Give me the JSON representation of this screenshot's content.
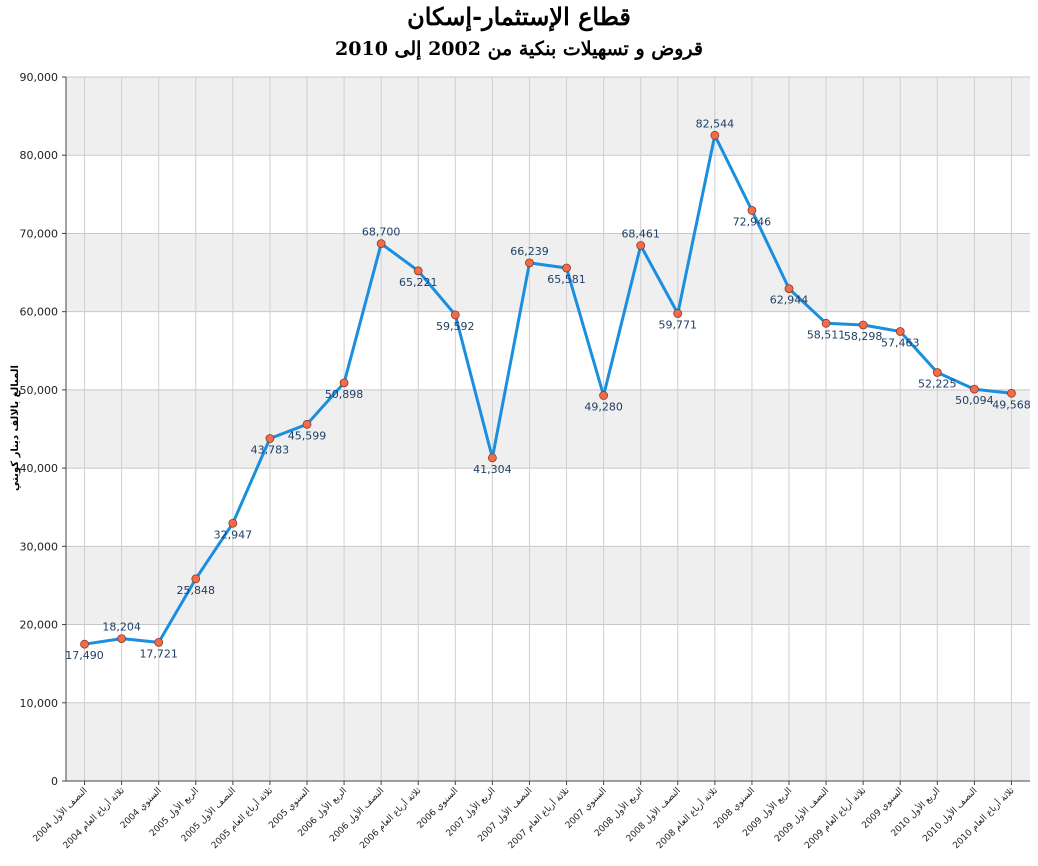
{
  "chart_data": {
    "type": "line",
    "title": "قطاع الإستثمار-إسكان",
    "subtitle": "قروض و تسهيلات بنكية من 2002 إلى 2010",
    "ylabel": "المبالغ بالالف دينار كويتي",
    "xlabel": "",
    "ylim": [
      0,
      90000
    ],
    "yticks": [
      "0",
      "10,000",
      "20,000",
      "30,000",
      "40,000",
      "50,000",
      "60,000",
      "70,000",
      "80,000",
      "90,000"
    ],
    "grid": true,
    "legend": "none",
    "line_color": "#1a8fe0",
    "marker_color": "#f26b4b",
    "band_color": "#efefef",
    "categories": [
      "النصف الأول 2004",
      "ثلاثة أرباع العام 2004",
      "السنوي 2004",
      "الربع الأول 2005",
      "النصف الأول 2005",
      "ثلاثة أرباع العام 2005",
      "السنوي 2005",
      "الربع الأول 2006",
      "النصف الأول 2006",
      "ثلاثة أرباع العام 2006",
      "السنوي 2006",
      "الربع الأول 2007",
      "النصف الأول 2007",
      "ثلاثة أرباع العام 2007",
      "السنوي 2007",
      "الربع الأول 2008",
      "النصف الأول 2008",
      "ثلاثة أرباع العام 2008",
      "السنوي 2008",
      "الربع الأول 2009",
      "النصف الأول 2009",
      "ثلاثة أرباع العام 2009",
      "السنوي 2009",
      "الربع الأول 2010",
      "النصف الأول 2010",
      "ثلاثة أرباع العام 2010"
    ],
    "values": [
      17490,
      18204,
      17721,
      25848,
      32947,
      43783,
      45599,
      50898,
      68700,
      65221,
      59592,
      41304,
      66239,
      65581,
      49280,
      68461,
      59771,
      82544,
      72946,
      62944,
      58511,
      58298,
      57463,
      52225,
      50094,
      49568
    ],
    "data_labels": [
      "17,490",
      "18,204",
      "17,721",
      "25,848",
      "32,947",
      "43,783",
      "45,599",
      "50,898",
      "68,700",
      "65,221",
      "59,592",
      "41,304",
      "66,239",
      "65,581",
      "49,280",
      "68,461",
      "59,771",
      "82,544",
      "72,946",
      "62,944",
      "58,511",
      "58,298",
      "57,463",
      "52,225",
      "50,094",
      "49,568"
    ]
  }
}
